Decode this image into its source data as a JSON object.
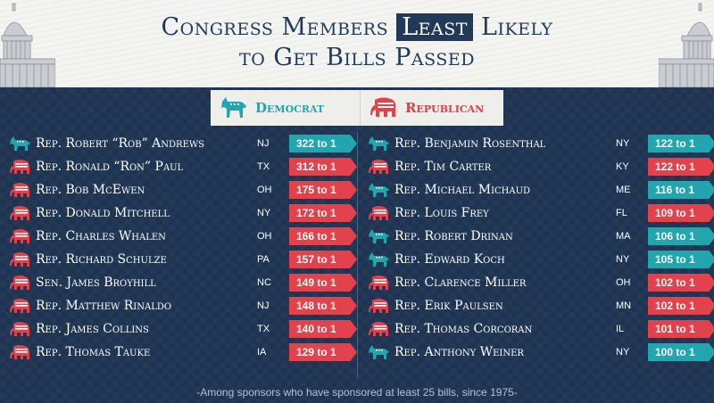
{
  "title": {
    "line1_before": "Congress Members ",
    "line1_highlight": "Least",
    "line1_after": " Likely",
    "line2": "to Get Bills Passed"
  },
  "legend": {
    "democrat": "Democrat",
    "republican": "Republican"
  },
  "colors": {
    "democrat": "#21a6b0",
    "republican": "#e2424c",
    "navy": "#223a5a"
  },
  "left_column": [
    {
      "party": "dem",
      "name": "Rep. Robert “Rob” Andrews",
      "state": "NJ",
      "odds": "322 to 1"
    },
    {
      "party": "rep",
      "name": "Rep. Ronald “Ron” Paul",
      "state": "TX",
      "odds": "312 to 1"
    },
    {
      "party": "rep",
      "name": "Rep. Bob McEwen",
      "state": "OH",
      "odds": "175 to 1"
    },
    {
      "party": "rep",
      "name": "Rep. Donald Mitchell",
      "state": "NY",
      "odds": "172 to 1"
    },
    {
      "party": "rep",
      "name": "Rep. Charles Whalen",
      "state": "OH",
      "odds": "166 to 1"
    },
    {
      "party": "rep",
      "name": "Rep. Richard Schulze",
      "state": "PA",
      "odds": "157 to 1"
    },
    {
      "party": "rep",
      "name": "Sen. James Broyhill",
      "state": "NC",
      "odds": "149 to 1"
    },
    {
      "party": "rep",
      "name": "Rep. Matthew Rinaldo",
      "state": "NJ",
      "odds": "148 to 1"
    },
    {
      "party": "rep",
      "name": "Rep. James Collins",
      "state": "TX",
      "odds": "140 to 1"
    },
    {
      "party": "rep",
      "name": "Rep. Thomas Tauke",
      "state": "IA",
      "odds": "129 to 1"
    }
  ],
  "right_column": [
    {
      "party": "dem",
      "name": "Rep. Benjamin Rosenthal",
      "state": "NY",
      "odds": "122 to 1"
    },
    {
      "party": "rep",
      "name": "Rep. Tim Carter",
      "state": "KY",
      "odds": "122 to 1"
    },
    {
      "party": "dem",
      "name": "Rep. Michael Michaud",
      "state": "ME",
      "odds": "116 to 1"
    },
    {
      "party": "rep",
      "name": "Rep. Louis Frey",
      "state": "FL",
      "odds": "109 to 1"
    },
    {
      "party": "dem",
      "name": "Rep. Robert Drinan",
      "state": "MA",
      "odds": "106 to 1"
    },
    {
      "party": "dem",
      "name": "Rep. Edward Koch",
      "state": "NY",
      "odds": "105 to 1"
    },
    {
      "party": "rep",
      "name": "Rep. Clarence Miller",
      "state": "OH",
      "odds": "102 to 1"
    },
    {
      "party": "rep",
      "name": "Rep. Erik Paulsen",
      "state": "MN",
      "odds": "102 to 1"
    },
    {
      "party": "rep",
      "name": "Rep. Thomas Corcoran",
      "state": "IL",
      "odds": "101 to 1"
    },
    {
      "party": "dem",
      "name": "Rep. Anthony Weiner",
      "state": "NY",
      "odds": "100 to 1"
    }
  ],
  "footer": "-Among sponsors who have sponsored at least 25 bills, since 1975-"
}
